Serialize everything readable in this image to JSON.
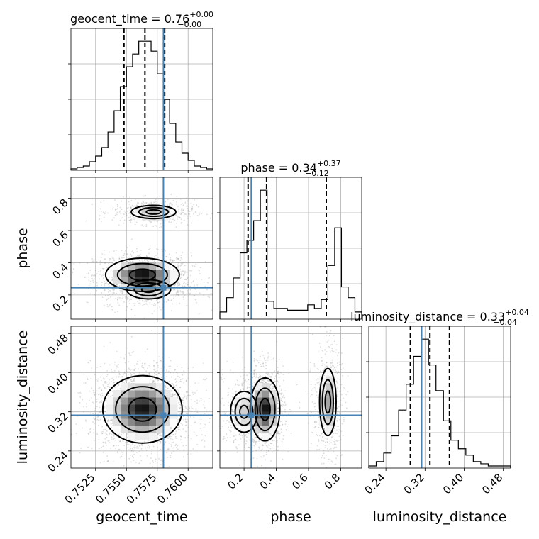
{
  "chart_data": {
    "type": "corner",
    "colors": {
      "truth": "#4682b4",
      "contour": "#000000",
      "grid": "#b0b0b0",
      "points": "#9a9a9a"
    },
    "parameters": [
      {
        "name": "geocent_time",
        "label": "geocent_time",
        "title_main": "geocent_time = 0.76",
        "title_plus": "+0.00",
        "title_minus": "−0.00",
        "range": [
          0.7505,
          0.762
        ],
        "ticks": [
          0.7525,
          0.755,
          0.7575,
          0.76
        ],
        "tick_labels": [
          "0.7525",
          "0.7550",
          "0.7575",
          "0.7600"
        ],
        "quantiles": [
          0.7548,
          0.7565,
          0.7581
        ],
        "truth": 0.758,
        "hist": [
          1,
          2,
          3,
          6,
          10,
          16,
          27,
          42,
          59,
          73,
          82,
          91,
          91,
          84,
          68,
          50,
          33,
          20,
          12,
          7,
          3,
          2,
          1
        ]
      },
      {
        "name": "phase",
        "label": "phase",
        "title_main": "phase = 0.34",
        "title_plus": "+0.37",
        "title_minus": "−0.12",
        "range": [
          0.05,
          0.93
        ],
        "ticks": [
          0.2,
          0.4,
          0.6,
          0.8
        ],
        "tick_labels": [
          "0.2",
          "0.4",
          "0.6",
          "0.8"
        ],
        "quantiles": [
          0.225,
          0.34,
          0.71
        ],
        "truth": 0.245,
        "hist": [
          4,
          12,
          23,
          37,
          44,
          55,
          72,
          10,
          6,
          6,
          5,
          5,
          5,
          8,
          6,
          11,
          30,
          51,
          18,
          12,
          4
        ]
      },
      {
        "name": "luminosity_distance",
        "label": "luminosity_distance",
        "title_main": "luminosity_distance = 0.33",
        "title_plus": "+0.04",
        "title_minus": "−0.04",
        "range": [
          0.205,
          0.495
        ],
        "ticks": [
          0.24,
          0.32,
          0.4,
          0.48
        ],
        "tick_labels": [
          "0.24",
          "0.32",
          "0.40",
          "0.48"
        ],
        "quantiles": [
          0.29,
          0.33,
          0.37
        ],
        "truth": 0.313,
        "hist": [
          1,
          3,
          7,
          15,
          27,
          39,
          52,
          60,
          48,
          36,
          22,
          13,
          9,
          6,
          3,
          2,
          1,
          1,
          1
        ]
      }
    ],
    "density": [
      {
        "x": "geocent_time",
        "y": "phase",
        "blobs": [
          {
            "cx": 0.7563,
            "cy": 0.325,
            "sx": 0.0013,
            "sy": 0.045,
            "w": 1.0
          },
          {
            "cx": 0.7572,
            "cy": 0.715,
            "sx": 0.0011,
            "sy": 0.025,
            "w": 0.45
          },
          {
            "cx": 0.7568,
            "cy": 0.235,
            "sx": 0.0012,
            "sy": 0.04,
            "w": 0.35
          }
        ]
      },
      {
        "x": "geocent_time",
        "y": "luminosity_distance",
        "blobs": [
          {
            "cx": 0.7563,
            "cy": 0.325,
            "sx": 0.0014,
            "sy": 0.03,
            "w": 1.0
          }
        ]
      },
      {
        "x": "phase",
        "y": "luminosity_distance",
        "blobs": [
          {
            "cx": 0.33,
            "cy": 0.325,
            "sx": 0.04,
            "sy": 0.028,
            "w": 1.0
          },
          {
            "cx": 0.72,
            "cy": 0.34,
            "sx": 0.03,
            "sy": 0.04,
            "w": 0.5
          },
          {
            "cx": 0.2,
            "cy": 0.32,
            "sx": 0.06,
            "sy": 0.03,
            "w": 0.3
          }
        ]
      }
    ]
  }
}
